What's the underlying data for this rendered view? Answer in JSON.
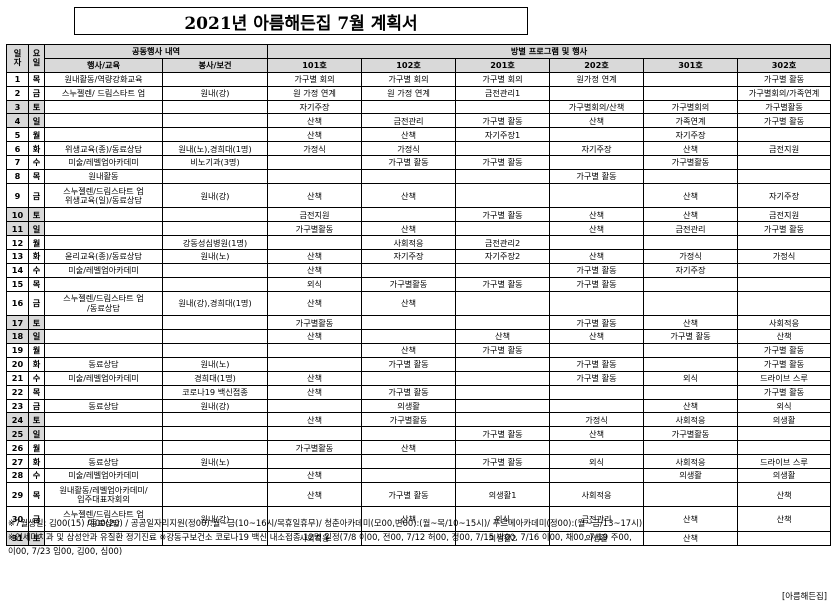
{
  "title": "2021년 아름해든집 7월 계획서",
  "header": {
    "day_label": "일\n자",
    "weekday_label": "요\n일",
    "common_label": "공동행사 내역",
    "program_label": "방별 프로그램 및 행사",
    "edu_label": "행사/교육",
    "service_label": "봉사/보건",
    "rooms": [
      "101호",
      "102호",
      "201호",
      "202호",
      "301호",
      "302호"
    ]
  },
  "rows": [
    {
      "day": "1",
      "wd": "목",
      "edu": "원내활동/역량강화교육",
      "svc": "",
      "r": [
        "가구별 회의",
        "가구별 회의",
        "가구별 회의",
        "원가정 연계",
        "",
        "가구별 활동"
      ]
    },
    {
      "day": "2",
      "wd": "금",
      "edu": "스누젤렌/ 드림스타트 업",
      "svc": "원내(강)",
      "r": [
        "원 가정 연계",
        "원 가정 연계",
        "금전관리1",
        "",
        "",
        "가구별회의/가족연계"
      ]
    },
    {
      "day": "3",
      "wd": "토",
      "edu": "",
      "svc": "",
      "r": [
        "자기주장",
        "",
        "",
        "가구별회의/산책",
        "가구별회의",
        "가구별활동"
      ]
    },
    {
      "day": "4",
      "wd": "일",
      "edu": "",
      "svc": "",
      "r": [
        "산책",
        "금전관리",
        "가구별 활동",
        "산책",
        "가족연계",
        "가구별 활동"
      ]
    },
    {
      "day": "5",
      "wd": "월",
      "edu": "",
      "svc": "",
      "r": [
        "산책",
        "산책",
        "자기주장1",
        "",
        "자기주장",
        ""
      ]
    },
    {
      "day": "6",
      "wd": "화",
      "edu": "위생교육(종)/동료상담",
      "svc": "원내(노),경희대(1명)",
      "r": [
        "가정식",
        "가정식",
        "",
        "자기주장",
        "산책",
        "금전지원"
      ]
    },
    {
      "day": "7",
      "wd": "수",
      "edu": "미술/레벨업아카데미",
      "svc": "비노기과(3명)",
      "r": [
        "",
        "가구별 활동",
        "가구별 활동",
        "",
        "가구별활동",
        ""
      ]
    },
    {
      "day": "8",
      "wd": "목",
      "edu": "원내활동",
      "svc": "",
      "r": [
        "",
        "",
        "",
        "가구별 활동",
        "",
        ""
      ]
    },
    {
      "day": "9",
      "wd": "금",
      "edu": "스누젤렌/드림스타트 업\n위생교육(일)/동료상담",
      "svc": "원내(강)",
      "r": [
        "산책",
        "산책",
        "",
        "",
        "산책",
        "자기주장"
      ],
      "tall": true
    },
    {
      "day": "10",
      "wd": "토",
      "edu": "",
      "svc": "",
      "r": [
        "금전지원",
        "",
        "가구별 활동",
        "산책",
        "산책",
        "금전지원"
      ]
    },
    {
      "day": "11",
      "wd": "일",
      "edu": "",
      "svc": "",
      "r": [
        "가구별활동",
        "산책",
        "",
        "산책",
        "금전관리",
        "가구별 활동"
      ]
    },
    {
      "day": "12",
      "wd": "월",
      "edu": "",
      "svc": "강동성심병원(1명)",
      "r": [
        "",
        "사회적응",
        "금전관리2",
        "",
        "",
        ""
      ]
    },
    {
      "day": "13",
      "wd": "화",
      "edu": "윤리교육(종)/동료상담",
      "svc": "원내(노)",
      "r": [
        "산책",
        "자기주장",
        "자기주장2",
        "산책",
        "가정식",
        "가정식"
      ]
    },
    {
      "day": "14",
      "wd": "수",
      "edu": "미술/레벨업아카데미",
      "svc": "",
      "r": [
        "산책",
        "",
        "",
        "가구별 활동",
        "자기주장",
        ""
      ]
    },
    {
      "day": "15",
      "wd": "목",
      "edu": "",
      "svc": "",
      "r": [
        "외식",
        "가구별활동",
        "가구별 활동",
        "가구별 활동",
        "",
        ""
      ]
    },
    {
      "day": "16",
      "wd": "금",
      "edu": "스누젤렌/드림스타트 업\n/동료상담",
      "svc": "원내(강),경희대(1명)",
      "r": [
        "산책",
        "산책",
        "",
        "",
        "",
        ""
      ],
      "tall": true
    },
    {
      "day": "17",
      "wd": "토",
      "edu": "",
      "svc": "",
      "r": [
        "가구별활동",
        "",
        "",
        "가구별 활동",
        "산책",
        "사회적응"
      ]
    },
    {
      "day": "18",
      "wd": "일",
      "edu": "",
      "svc": "",
      "r": [
        "산책",
        "",
        "산책",
        "산책",
        "가구별 활동",
        "산책"
      ]
    },
    {
      "day": "19",
      "wd": "월",
      "edu": "",
      "svc": "",
      "r": [
        "",
        "산책",
        "가구별 활동",
        "",
        "",
        "가구별 활동"
      ]
    },
    {
      "day": "20",
      "wd": "화",
      "edu": "동료상담",
      "svc": "원내(노)",
      "r": [
        "",
        "가구별 활동",
        "",
        "가구별 활동",
        "",
        "가구별 활동"
      ]
    },
    {
      "day": "21",
      "wd": "수",
      "edu": "미술/레벨업아카데미",
      "svc": "경희대(1명)",
      "r": [
        "산책",
        "",
        "",
        "가구별 활동",
        "외식",
        "드라이브 스루"
      ]
    },
    {
      "day": "22",
      "wd": "목",
      "edu": "",
      "svc": "코로나19 백신접종",
      "r": [
        "산책",
        "가구별 활동",
        "",
        "",
        "",
        "가구별 활동"
      ]
    },
    {
      "day": "23",
      "wd": "금",
      "edu": "동료상담",
      "svc": "원내(강)",
      "r": [
        "",
        "의생활",
        "",
        "",
        "산책",
        "외식"
      ]
    },
    {
      "day": "24",
      "wd": "토",
      "edu": "",
      "svc": "",
      "r": [
        "산책",
        "가구별활동",
        "",
        "가정식",
        "사회적응",
        "의생활"
      ]
    },
    {
      "day": "25",
      "wd": "일",
      "edu": "",
      "svc": "",
      "r": [
        "",
        "",
        "가구별 활동",
        "산책",
        "가구별활동",
        ""
      ]
    },
    {
      "day": "26",
      "wd": "월",
      "edu": "",
      "svc": "",
      "r": [
        "가구별활동",
        "산책",
        "",
        "",
        "",
        ""
      ]
    },
    {
      "day": "27",
      "wd": "화",
      "edu": "동료상담",
      "svc": "원내(노)",
      "r": [
        "",
        "",
        "가구별 활동",
        "외식",
        "사회적응",
        "드라이브 스루"
      ]
    },
    {
      "day": "28",
      "wd": "수",
      "edu": "미술/레벨업아카데미",
      "svc": "",
      "r": [
        "산책",
        "",
        "",
        "",
        "의생활",
        "의생활"
      ]
    },
    {
      "day": "29",
      "wd": "목",
      "edu": "원내활동/레벨업아카데미/\n입주대표자회의",
      "svc": "",
      "r": [
        "산책",
        "가구별 활동",
        "의생활1",
        "사회적응",
        "",
        "산책"
      ],
      "tall": true
    },
    {
      "day": "30",
      "wd": "금",
      "edu": "스누젤렌/드림스타트 업\n/동료상담",
      "svc": "원내(강)",
      "r": [
        "",
        "산책",
        "외식",
        "금전관리",
        "산책",
        "산책"
      ],
      "tall": true
    },
    {
      "day": "31",
      "wd": "토",
      "edu": "",
      "svc": "",
      "r": [
        "사회적응",
        "",
        "의생활2",
        "의생활",
        "산책",
        ""
      ]
    }
  ],
  "notes": [
    "※7월생일: 김00(15) 이00(20) / 공공일자리지원(정00):월~금(10~16시/목휴일휴무)/ 청춘아카데미(모00,변00):(월~목/10~15시)/ 푸르메아카데미(정00):(월~금/13~17시)",
    "※연세미치과 및 삼성안과 유질환 정기진료 ※강동구보건소 코로나19 백신 내소접종 12명 일정(7/8 이00, 전00, 7/12 허00, 정00, 7/15 박00, 7/16 이00, 채00, 7/19 주00,",
    "이00, 7/23 임00, 김00, 심00)"
  ],
  "footer": "[아름해든집]"
}
